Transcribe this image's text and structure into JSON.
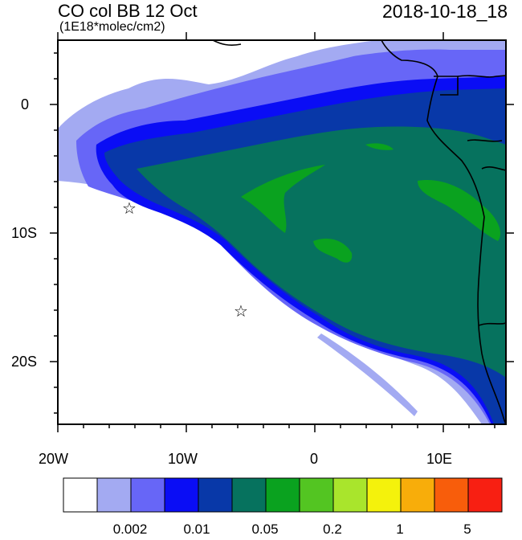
{
  "header": {
    "title": "CO col BB 12 Oct",
    "units": "(1E18*molec/cm2)",
    "datetime": "2018-10-18_18"
  },
  "axes": {
    "y_labels": [
      "0",
      "10S",
      "20S"
    ],
    "x_labels": [
      "20W",
      "10W",
      "0",
      "10E"
    ]
  },
  "colorbar": {
    "colors": [
      "#ffffff",
      "#a3aaf2",
      "#6766f7",
      "#0a0df5",
      "#0838a8",
      "#06725e",
      "#0aa21f",
      "#53c522",
      "#a9e52c",
      "#f4f20c",
      "#f8ad0a",
      "#f85d0b",
      "#f81f12"
    ],
    "labels": [
      "0.002",
      "0.01",
      "0.05",
      "0.2",
      "1",
      "5"
    ]
  },
  "markers": [
    {
      "name": "star-marker-west",
      "symbol": "☆",
      "lon": -14.5,
      "lat": -8
    },
    {
      "name": "star-marker-south",
      "symbol": "☆",
      "lon": -5.8,
      "lat": -16
    }
  ],
  "chart_data": {
    "type": "heatmap",
    "title": "CO col BB 12 Oct",
    "subtitle": "(1E18*molec/cm2)",
    "timestamp": "2018-10-18_18",
    "xlim": [
      -20,
      14.8
    ],
    "ylim": [
      -24.8,
      5
    ],
    "x_ticks": [
      "20W",
      "10W",
      "0",
      "10E"
    ],
    "y_ticks": [
      "0",
      "10S",
      "20S"
    ],
    "levels": [
      0.002,
      0.01,
      0.05,
      0.2,
      1,
      5
    ],
    "legend": "bottom"
  }
}
